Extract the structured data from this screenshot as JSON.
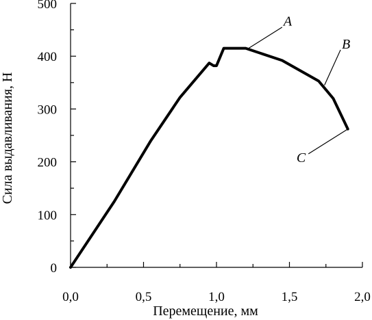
{
  "chart_data": {
    "type": "line",
    "title": "",
    "xlabel": "Перемещение, мм",
    "ylabel": "Сила выдавливания, Н",
    "xlim": [
      0,
      2.0
    ],
    "ylim": [
      0,
      500
    ],
    "grid": false,
    "x_ticks": [
      0.0,
      0.5,
      1.0,
      1.5,
      2.0
    ],
    "x_tick_labels": [
      "0,0",
      "0,5",
      "1,0",
      "1,5",
      "2,0"
    ],
    "y_ticks": [
      0,
      100,
      200,
      300,
      400,
      500
    ],
    "y_tick_labels": [
      "0",
      "100",
      "200",
      "300",
      "400",
      "500"
    ],
    "series": [
      {
        "color": "#000000",
        "x": [
          0.0,
          0.3,
          0.55,
          0.75,
          0.95,
          0.98,
          1.0,
          1.05,
          1.2,
          1.45,
          1.7,
          1.8,
          1.9
        ],
        "y": [
          0,
          125,
          240,
          322,
          387,
          382,
          382,
          415,
          415,
          392,
          353,
          320,
          262
        ]
      }
    ],
    "annotations": [
      {
        "label": "A",
        "point": [
          1.22,
          415
        ],
        "text_pos": [
          1.45,
          455
        ]
      },
      {
        "label": "B",
        "point": [
          1.74,
          345
        ],
        "text_pos": [
          1.85,
          412
        ]
      },
      {
        "label": "C",
        "point": [
          1.9,
          262
        ],
        "text_pos": [
          1.63,
          215
        ]
      }
    ]
  }
}
